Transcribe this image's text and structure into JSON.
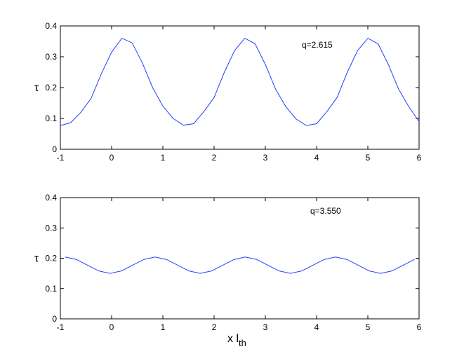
{
  "chart_data": [
    {
      "type": "line",
      "ylabel": "τ",
      "annotation": "q=2.615",
      "xlim": [
        -1,
        6
      ],
      "ylim": [
        0,
        0.4
      ],
      "xticks": [
        -1,
        0,
        1,
        2,
        3,
        4,
        5,
        6
      ],
      "yticks": [
        0,
        0.1,
        0.2,
        0.3,
        0.4
      ],
      "x": [
        -1,
        -0.8,
        -0.6,
        -0.4,
        -0.2,
        0,
        0.2,
        0.4,
        0.6,
        0.8,
        1,
        1.2,
        1.4,
        1.6,
        1.8,
        2,
        2.2,
        2.4,
        2.6,
        2.8,
        3,
        3.2,
        3.4,
        3.6,
        3.8,
        4,
        4.2,
        4.4,
        4.6,
        4.8,
        5,
        5.2,
        5.4,
        5.6,
        5.8,
        6
      ],
      "series": [
        {
          "color": "#1f3fff",
          "values": [
            0.077,
            0.086,
            0.12,
            0.165,
            0.245,
            0.315,
            0.36,
            0.345,
            0.28,
            0.2,
            0.14,
            0.1,
            0.078,
            0.083,
            0.122,
            0.168,
            0.25,
            0.32,
            0.36,
            0.342,
            0.275,
            0.195,
            0.138,
            0.098,
            0.077,
            0.083,
            0.122,
            0.168,
            0.25,
            0.32,
            0.36,
            0.342,
            0.275,
            0.195,
            0.138,
            0.09
          ]
        }
      ]
    },
    {
      "type": "line",
      "ylabel": "τ",
      "annotation": "q=3.550",
      "xlabel": {
        "text": "x l",
        "subscript": "th"
      },
      "xlim": [
        -1,
        6
      ],
      "ylim": [
        0,
        0.4
      ],
      "xticks": [
        -1,
        0,
        1,
        2,
        3,
        4,
        5,
        6
      ],
      "yticks": [
        0,
        0.1,
        0.2,
        0.3,
        0.4
      ],
      "x": [
        -0.91,
        -0.69,
        -0.47,
        -0.25,
        -0.03,
        0.19,
        0.41,
        0.63,
        0.85,
        1.07,
        1.29,
        1.51,
        1.73,
        1.95,
        2.17,
        2.39,
        2.61,
        2.83,
        3.05,
        3.27,
        3.49,
        3.71,
        3.93,
        4.15,
        4.37,
        4.59,
        4.81,
        5.03,
        5.25,
        5.47,
        5.69,
        5.91
      ],
      "series": [
        {
          "color": "#1f3fff",
          "values": [
            0.204,
            0.196,
            0.177,
            0.158,
            0.15,
            0.158,
            0.177,
            0.196,
            0.204,
            0.196,
            0.177,
            0.158,
            0.15,
            0.158,
            0.177,
            0.196,
            0.204,
            0.196,
            0.177,
            0.158,
            0.15,
            0.158,
            0.177,
            0.196,
            0.204,
            0.196,
            0.177,
            0.158,
            0.15,
            0.158,
            0.177,
            0.196
          ]
        }
      ]
    }
  ]
}
